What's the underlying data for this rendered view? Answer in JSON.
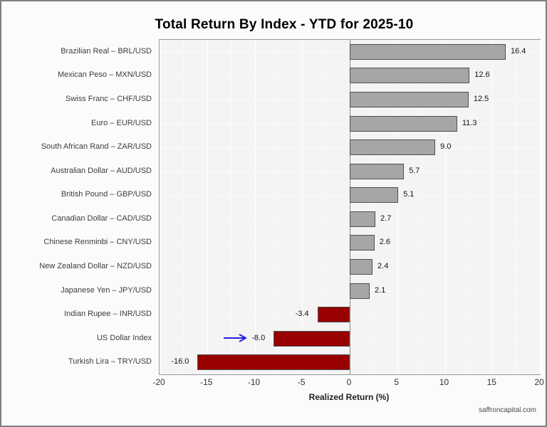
{
  "header": {
    "title": "Total Return By Index - YTD for 2025-10"
  },
  "footer": {
    "watermark": "saffroncapital.com"
  },
  "chart_data": {
    "type": "bar",
    "orientation": "horizontal",
    "title": "Total Return By Index - YTD for 2025-10",
    "xlabel": "Realized Return (%)",
    "ylabel": "",
    "xlim": [
      -20,
      20
    ],
    "xticks": [
      -20,
      -15,
      -10,
      -5,
      0,
      5,
      10,
      15,
      20
    ],
    "minor_tick_step": 2.5,
    "grid": true,
    "legend": false,
    "categories": [
      "Brazilian Real – BRL/USD",
      "Mexican Peso – MXN/USD",
      "Swiss Franc – CHF/USD",
      "Euro – EUR/USD",
      "South African Rand – ZAR/USD",
      "Australian Dollar – AUD/USD",
      "British Pound – GBP/USD",
      "Canadian Dollar – CAD/USD",
      "Chinese Renminbi – CNY/USD",
      "New Zealand Dollar – NZD/USD",
      "Japanese Yen – JPY/USD",
      "Indian Rupee – INR/USD",
      "US Dollar Index",
      "Turkish Lira – TRY/USD"
    ],
    "values": [
      16.4,
      12.6,
      12.5,
      11.3,
      9.0,
      5.7,
      5.1,
      2.7,
      2.6,
      2.4,
      2.1,
      -3.4,
      -8.0,
      -16.0
    ],
    "bar_labels": [
      "16.4",
      "12.6",
      "12.5",
      "11.3",
      "9.0",
      "5.7",
      "5.1",
      "2.7",
      "2.6",
      "2.4",
      "2.1",
      "-3.4",
      "-8.0",
      "-16.0"
    ],
    "colors": {
      "positive_bar": "#a6a6a6",
      "negative_bar": "#990000",
      "bar_border": "#4f4f4f",
      "annotation_arrow": "#2020e0",
      "panel_background": "#f4f4f4",
      "gridline": "#ffffff"
    },
    "annotations": [
      {
        "type": "arrow",
        "icon": "right-arrow-icon",
        "target_category": "US Dollar Index",
        "color": "#2020e0"
      }
    ]
  }
}
